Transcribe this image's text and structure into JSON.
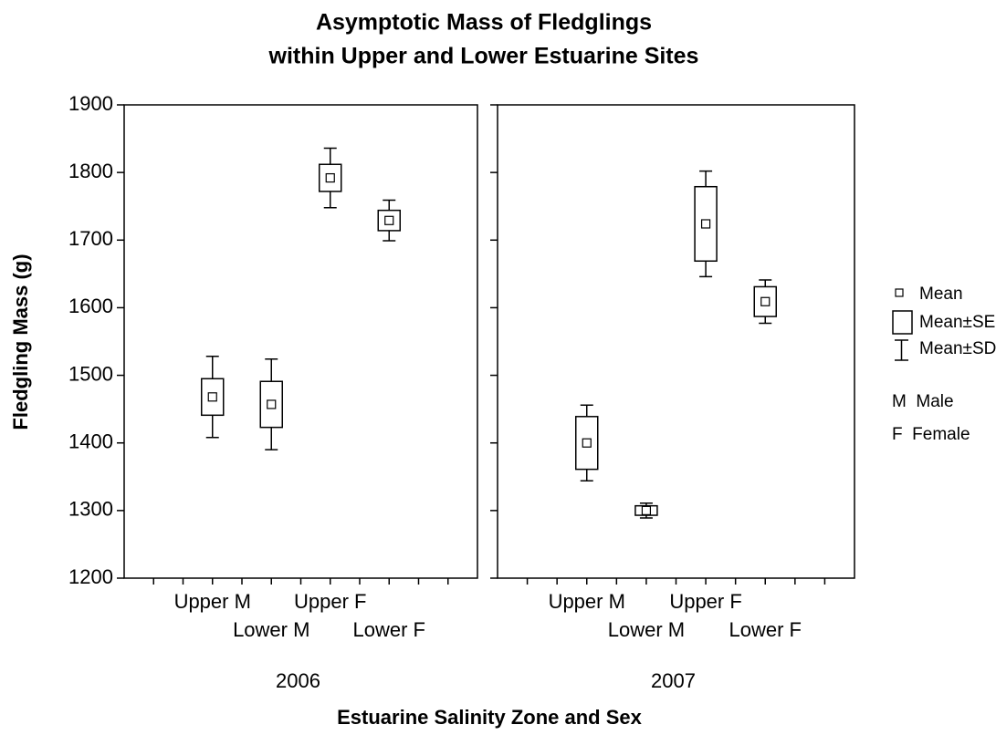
{
  "chart_data": {
    "type": "box",
    "title_lines": [
      "Asymptotic Mass of Fledglings",
      "within Upper and Lower Estuarine Sites"
    ],
    "y_label": "Fledgling Mass (g)",
    "x_label": "Estuarine Salinity Zone and Sex",
    "ylim": [
      1200,
      1900
    ],
    "yticks": [
      1200,
      1300,
      1400,
      1500,
      1600,
      1700,
      1800,
      1900
    ],
    "legend": [
      "Mean",
      "Mean±SE",
      "Mean±SD"
    ],
    "notes": [
      "M  Male",
      "F  Female"
    ],
    "panels": [
      {
        "label": "2006",
        "categories": [
          "Upper M",
          "Lower M",
          "Upper F",
          "Lower F"
        ],
        "mean": [
          1468,
          1457,
          1792,
          1729
        ],
        "se": [
          27,
          34,
          20,
          15
        ],
        "sd": [
          60,
          67,
          44,
          30
        ]
      },
      {
        "label": "2007",
        "categories": [
          "Upper M",
          "Lower M",
          "Upper F",
          "Lower F"
        ],
        "mean": [
          1400,
          1300,
          1724,
          1609
        ],
        "se": [
          39,
          7,
          55,
          22
        ],
        "sd": [
          56,
          11,
          78,
          32
        ]
      }
    ]
  }
}
